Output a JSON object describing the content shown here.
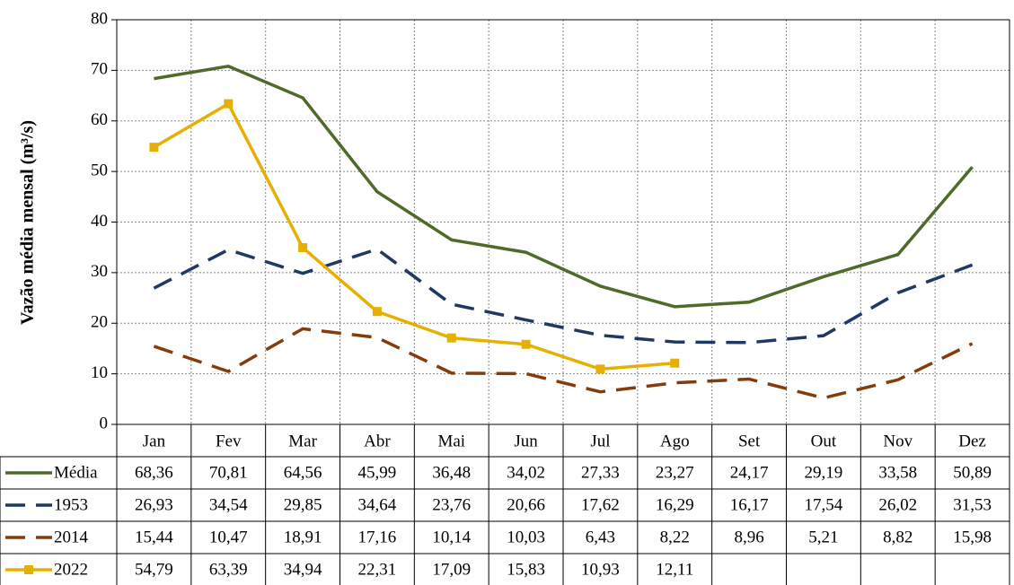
{
  "chart_data": {
    "type": "line",
    "y_label": "Vazão média mensal (m³/s)",
    "categories": [
      "Jan",
      "Fev",
      "Mar",
      "Abr",
      "Mai",
      "Jun",
      "Jul",
      "Ago",
      "Set",
      "Out",
      "Nov",
      "Dez"
    ],
    "ylim": [
      0,
      80
    ],
    "yticks": [
      0,
      10,
      20,
      30,
      40,
      50,
      60,
      70,
      80
    ],
    "grid": true,
    "series": [
      {
        "name": "Média",
        "color": "#4e6b2a",
        "line_style": "solid",
        "marker": "none",
        "values": [
          68.36,
          70.81,
          64.56,
          45.99,
          36.48,
          34.02,
          27.33,
          23.27,
          24.17,
          29.19,
          33.58,
          50.89
        ],
        "value_labels": [
          "68,36",
          "70,81",
          "64,56",
          "45,99",
          "36,48",
          "34,02",
          "27,33",
          "23,27",
          "24,17",
          "29,19",
          "33,58",
          "50,89"
        ]
      },
      {
        "name": "1953",
        "color": "#1f3864",
        "line_style": "dashed",
        "marker": "none",
        "values": [
          26.93,
          34.54,
          29.85,
          34.64,
          23.76,
          20.66,
          17.62,
          16.29,
          16.17,
          17.54,
          26.02,
          31.53
        ],
        "value_labels": [
          "26,93",
          "34,54",
          "29,85",
          "34,64",
          "23,76",
          "20,66",
          "17,62",
          "16,29",
          "16,17",
          "17,54",
          "26,02",
          "31,53"
        ]
      },
      {
        "name": "2014",
        "color": "#843c0c",
        "line_style": "dashed",
        "marker": "none",
        "values": [
          15.44,
          10.47,
          18.91,
          17.16,
          10.14,
          10.03,
          6.43,
          8.22,
          8.96,
          5.21,
          8.82,
          15.98
        ],
        "value_labels": [
          "15,44",
          "10,47",
          "18,91",
          "17,16",
          "10,14",
          "10,03",
          "6,43",
          "8,22",
          "8,96",
          "5,21",
          "8,82",
          "15,98"
        ]
      },
      {
        "name": "2022",
        "color": "#e6b000",
        "line_style": "solid",
        "marker": "square",
        "values": [
          54.79,
          63.39,
          34.94,
          22.31,
          17.09,
          15.83,
          10.93,
          12.11,
          null,
          null,
          null,
          null
        ],
        "value_labels": [
          "54,79",
          "63,39",
          "34,94",
          "22,31",
          "17,09",
          "15,83",
          "10,93",
          "12,11",
          null,
          null,
          null,
          null
        ]
      }
    ]
  }
}
